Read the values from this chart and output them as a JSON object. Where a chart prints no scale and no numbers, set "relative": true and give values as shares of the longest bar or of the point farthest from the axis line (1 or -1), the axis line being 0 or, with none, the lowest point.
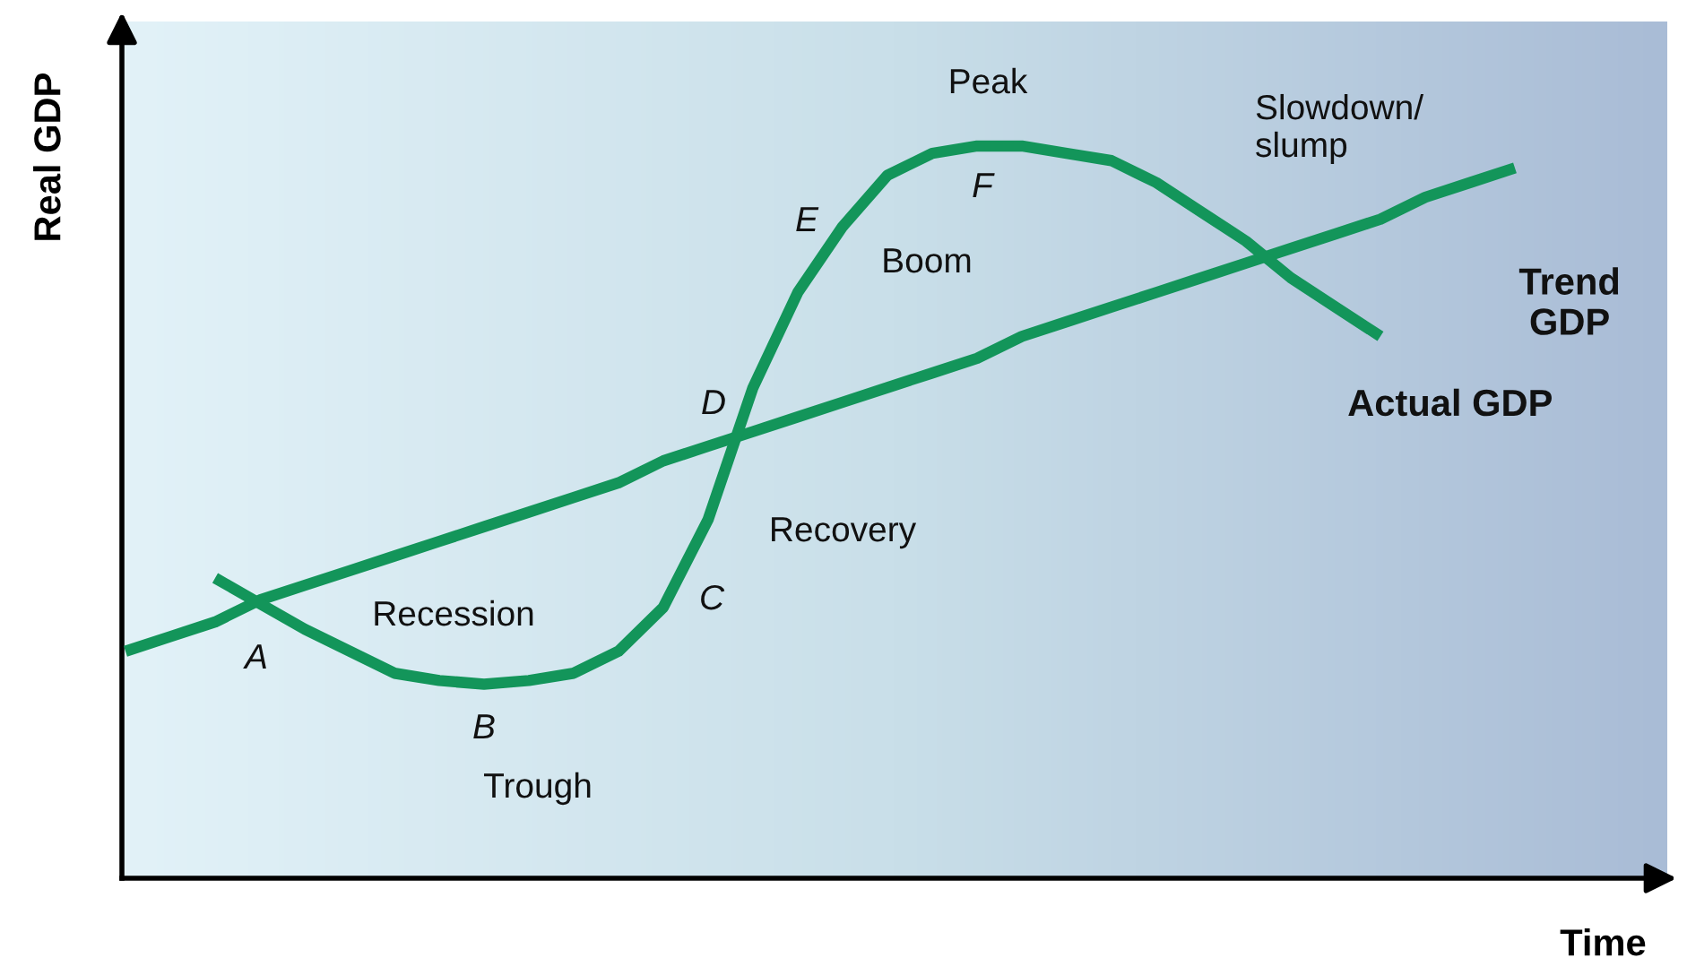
{
  "chart_data": {
    "type": "line",
    "relative": true,
    "xlabel": "Time",
    "ylabel": "Real GDP",
    "categories": [
      null,
      null,
      null,
      null,
      null,
      null,
      null,
      null,
      null,
      null,
      null,
      null,
      null,
      null,
      null,
      null,
      null,
      null,
      null,
      null,
      null,
      null,
      null,
      null,
      null,
      null,
      null,
      null,
      null,
      null,
      null,
      null
    ],
    "series": [
      {
        "name": "Trend\nGDP",
        "color": "#13955a",
        "values": [
          0.31,
          0.33,
          0.35,
          0.38,
          0.4,
          0.42,
          0.44,
          0.46,
          0.48,
          0.5,
          0.52,
          0.54,
          0.57,
          0.59,
          0.61,
          0.63,
          0.65,
          0.67,
          0.69,
          0.71,
          0.74,
          0.76,
          0.78,
          0.8,
          0.82,
          0.84,
          0.86,
          0.88,
          0.9,
          0.93,
          0.95,
          0.97
        ]
      },
      {
        "name": "Actual GDP",
        "color": "#13955a",
        "values": [
          null,
          null,
          0.41,
          0.375,
          0.34,
          0.31,
          0.28,
          0.27,
          0.265,
          0.27,
          0.28,
          0.31,
          0.37,
          0.49,
          0.67,
          0.8,
          0.89,
          0.96,
          0.99,
          1.0,
          1.0,
          0.99,
          0.98,
          0.95,
          0.91,
          0.87,
          0.82,
          0.78,
          0.74,
          null,
          null,
          null
        ]
      }
    ],
    "annotations": [
      "A",
      "Recession",
      "B",
      "Trough",
      "C",
      "Recovery",
      "D",
      "E",
      "Boom",
      "Peak",
      "F",
      "Slowdown/\nslump"
    ],
    "grid": false,
    "legend": false,
    "marker": "none",
    "line_style": "solid"
  }
}
